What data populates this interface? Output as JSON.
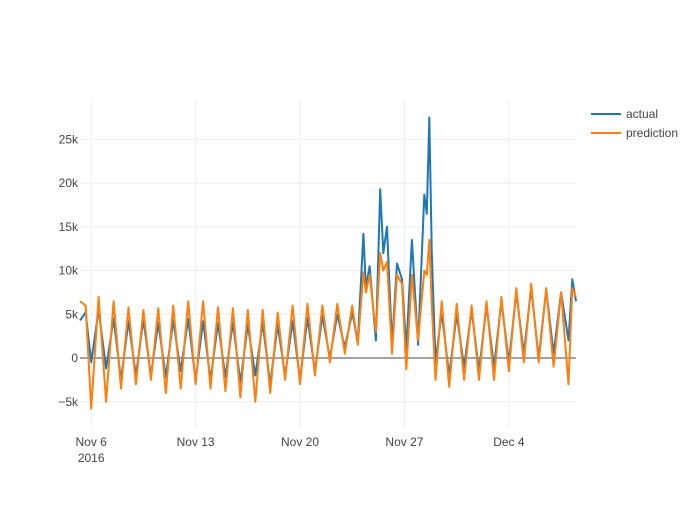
{
  "chart_data": {
    "type": "line",
    "title": "",
    "xlabel": "",
    "ylabel": "",
    "ylim": [
      -8000,
      29500
    ],
    "y_ticks": [
      -5000,
      0,
      5000,
      10000,
      15000,
      20000,
      25000
    ],
    "y_tick_labels": [
      "−5k",
      "0",
      "5k",
      "10k",
      "15k",
      "20k",
      "25k"
    ],
    "x_range_days": [
      "2016-11-05T06:00",
      "2016-12-08T12:00"
    ],
    "x_ticks": [
      {
        "date": "2016-11-06",
        "label": "Nov 6",
        "sublabel": "2016"
      },
      {
        "date": "2016-11-13",
        "label": "Nov 13",
        "sublabel": ""
      },
      {
        "date": "2016-11-20",
        "label": "Nov 20",
        "sublabel": ""
      },
      {
        "date": "2016-11-27",
        "label": "Nov 27",
        "sublabel": ""
      },
      {
        "date": "2016-12-04",
        "label": "Dec 4",
        "sublabel": ""
      }
    ],
    "legend_position": "top-right",
    "grid": true,
    "series": [
      {
        "name": "actual",
        "color": "#1f77b4",
        "points": [
          [
            "2016-11-05T06:00",
            4300
          ],
          [
            "2016-11-05T15:00",
            5200
          ],
          [
            "2016-11-06T00:00",
            -500
          ],
          [
            "2016-11-06T12:00",
            5500
          ],
          [
            "2016-11-07T00:00",
            -1200
          ],
          [
            "2016-11-07T12:00",
            4500
          ],
          [
            "2016-11-08T00:00",
            -2500
          ],
          [
            "2016-11-08T12:00",
            4200
          ],
          [
            "2016-11-09T00:00",
            -2000
          ],
          [
            "2016-11-09T12:00",
            4400
          ],
          [
            "2016-11-10T00:00",
            -2000
          ],
          [
            "2016-11-10T12:00",
            4000
          ],
          [
            "2016-11-11T00:00",
            -2200
          ],
          [
            "2016-11-11T12:00",
            4300
          ],
          [
            "2016-11-12T00:00",
            -1500
          ],
          [
            "2016-11-12T12:00",
            4500
          ],
          [
            "2016-11-13T00:00",
            -2500
          ],
          [
            "2016-11-13T12:00",
            4200
          ],
          [
            "2016-11-14T00:00",
            -2500
          ],
          [
            "2016-11-14T12:00",
            4000
          ],
          [
            "2016-11-15T00:00",
            -2200
          ],
          [
            "2016-11-15T12:00",
            4100
          ],
          [
            "2016-11-16T00:00",
            -2800
          ],
          [
            "2016-11-16T12:00",
            3800
          ],
          [
            "2016-11-17T00:00",
            -2000
          ],
          [
            "2016-11-17T12:00",
            4000
          ],
          [
            "2016-11-18T00:00",
            -3000
          ],
          [
            "2016-11-18T12:00",
            3800
          ],
          [
            "2016-11-19T00:00",
            -2000
          ],
          [
            "2016-11-19T12:00",
            4200
          ],
          [
            "2016-11-20T00:00",
            -2500
          ],
          [
            "2016-11-20T12:00",
            4600
          ],
          [
            "2016-11-21T00:00",
            -1500
          ],
          [
            "2016-11-21T12:00",
            4800
          ],
          [
            "2016-11-22T00:00",
            0
          ],
          [
            "2016-11-22T12:00",
            5000
          ],
          [
            "2016-11-23T00:00",
            1200
          ],
          [
            "2016-11-23T12:00",
            5200
          ],
          [
            "2016-11-23T21:00",
            1800
          ],
          [
            "2016-11-24T06:00",
            14200
          ],
          [
            "2016-11-24T10:00",
            8000
          ],
          [
            "2016-11-24T16:00",
            10500
          ],
          [
            "2016-11-25T02:00",
            2000
          ],
          [
            "2016-11-25T09:00",
            19300
          ],
          [
            "2016-11-25T14:00",
            12000
          ],
          [
            "2016-11-25T20:00",
            15000
          ],
          [
            "2016-11-26T04:00",
            1500
          ],
          [
            "2016-11-26T12:00",
            10800
          ],
          [
            "2016-11-26T20:00",
            9000
          ],
          [
            "2016-11-27T03:00",
            1000
          ],
          [
            "2016-11-27T12:00",
            13500
          ],
          [
            "2016-11-27T22:00",
            1500
          ],
          [
            "2016-11-28T08:00",
            18700
          ],
          [
            "2016-11-28T12:00",
            16500
          ],
          [
            "2016-11-28T16:00",
            27500
          ],
          [
            "2016-11-28T20:00",
            12000
          ],
          [
            "2016-11-29T02:00",
            -500
          ],
          [
            "2016-11-29T12:00",
            5200
          ],
          [
            "2016-11-30T00:00",
            -2000
          ],
          [
            "2016-11-30T12:00",
            5000
          ],
          [
            "2016-12-01T00:00",
            -1000
          ],
          [
            "2016-12-01T12:00",
            5500
          ],
          [
            "2016-12-02T00:00",
            -1500
          ],
          [
            "2016-12-02T12:00",
            6000
          ],
          [
            "2016-12-03T00:00",
            -1000
          ],
          [
            "2016-12-03T12:00",
            6500
          ],
          [
            "2016-12-04T00:00",
            -500
          ],
          [
            "2016-12-04T12:00",
            7500
          ],
          [
            "2016-12-05T00:00",
            500
          ],
          [
            "2016-12-05T12:00",
            8000
          ],
          [
            "2016-12-06T00:00",
            0
          ],
          [
            "2016-12-06T12:00",
            7800
          ],
          [
            "2016-12-07T00:00",
            500
          ],
          [
            "2016-12-07T12:00",
            7500
          ],
          [
            "2016-12-08T00:00",
            2000
          ],
          [
            "2016-12-08T06:00",
            9000
          ],
          [
            "2016-12-08T12:00",
            6500
          ]
        ]
      },
      {
        "name": "prediction",
        "color": "#ff7f0e",
        "points": [
          [
            "2016-11-05T06:00",
            6500
          ],
          [
            "2016-11-05T15:00",
            6000
          ],
          [
            "2016-11-06T00:00",
            -5800
          ],
          [
            "2016-11-06T12:00",
            7000
          ],
          [
            "2016-11-07T00:00",
            -5000
          ],
          [
            "2016-11-07T12:00",
            6500
          ],
          [
            "2016-11-08T00:00",
            -3500
          ],
          [
            "2016-11-08T12:00",
            5800
          ],
          [
            "2016-11-09T00:00",
            -3000
          ],
          [
            "2016-11-09T12:00",
            5500
          ],
          [
            "2016-11-10T00:00",
            -2500
          ],
          [
            "2016-11-10T12:00",
            5700
          ],
          [
            "2016-11-11T00:00",
            -4000
          ],
          [
            "2016-11-11T12:00",
            6000
          ],
          [
            "2016-11-12T00:00",
            -3500
          ],
          [
            "2016-11-12T12:00",
            6500
          ],
          [
            "2016-11-13T00:00",
            -3000
          ],
          [
            "2016-11-13T12:00",
            6500
          ],
          [
            "2016-11-14T00:00",
            -3500
          ],
          [
            "2016-11-14T12:00",
            5800
          ],
          [
            "2016-11-15T00:00",
            -3800
          ],
          [
            "2016-11-15T12:00",
            5700
          ],
          [
            "2016-11-16T00:00",
            -4500
          ],
          [
            "2016-11-16T12:00",
            5500
          ],
          [
            "2016-11-17T00:00",
            -5000
          ],
          [
            "2016-11-17T12:00",
            5500
          ],
          [
            "2016-11-18T00:00",
            -4000
          ],
          [
            "2016-11-18T12:00",
            5200
          ],
          [
            "2016-11-19T00:00",
            -2500
          ],
          [
            "2016-11-19T12:00",
            6000
          ],
          [
            "2016-11-20T00:00",
            -3000
          ],
          [
            "2016-11-20T12:00",
            6200
          ],
          [
            "2016-11-21T00:00",
            -2000
          ],
          [
            "2016-11-21T12:00",
            6000
          ],
          [
            "2016-11-22T00:00",
            -500
          ],
          [
            "2016-11-22T12:00",
            6200
          ],
          [
            "2016-11-23T00:00",
            500
          ],
          [
            "2016-11-23T12:00",
            6000
          ],
          [
            "2016-11-23T21:00",
            1500
          ],
          [
            "2016-11-24T06:00",
            9800
          ],
          [
            "2016-11-24T10:00",
            7500
          ],
          [
            "2016-11-24T16:00",
            9500
          ],
          [
            "2016-11-25T02:00",
            3000
          ],
          [
            "2016-11-25T09:00",
            12000
          ],
          [
            "2016-11-25T14:00",
            10000
          ],
          [
            "2016-11-25T20:00",
            11000
          ],
          [
            "2016-11-26T04:00",
            500
          ],
          [
            "2016-11-26T12:00",
            9500
          ],
          [
            "2016-11-26T20:00",
            8500
          ],
          [
            "2016-11-27T03:00",
            -1300
          ],
          [
            "2016-11-27T12:00",
            9500
          ],
          [
            "2016-11-27T22:00",
            2000
          ],
          [
            "2016-11-28T08:00",
            10000
          ],
          [
            "2016-11-28T12:00",
            9500
          ],
          [
            "2016-11-28T16:00",
            13500
          ],
          [
            "2016-11-28T20:00",
            6000
          ],
          [
            "2016-11-29T02:00",
            -2500
          ],
          [
            "2016-11-29T12:00",
            6500
          ],
          [
            "2016-11-30T00:00",
            -3300
          ],
          [
            "2016-11-30T12:00",
            6200
          ],
          [
            "2016-12-01T00:00",
            -2500
          ],
          [
            "2016-12-01T12:00",
            6000
          ],
          [
            "2016-12-02T00:00",
            -2500
          ],
          [
            "2016-12-02T12:00",
            6500
          ],
          [
            "2016-12-03T00:00",
            -2500
          ],
          [
            "2016-12-03T12:00",
            7000
          ],
          [
            "2016-12-04T00:00",
            -1500
          ],
          [
            "2016-12-04T12:00",
            8000
          ],
          [
            "2016-12-05T00:00",
            -500
          ],
          [
            "2016-12-05T12:00",
            8500
          ],
          [
            "2016-12-06T00:00",
            -500
          ],
          [
            "2016-12-06T12:00",
            8000
          ],
          [
            "2016-12-07T00:00",
            -1000
          ],
          [
            "2016-12-07T12:00",
            7500
          ],
          [
            "2016-12-08T00:00",
            -3000
          ],
          [
            "2016-12-08T06:00",
            8000
          ],
          [
            "2016-12-08T12:00",
            7000
          ]
        ]
      }
    ]
  }
}
